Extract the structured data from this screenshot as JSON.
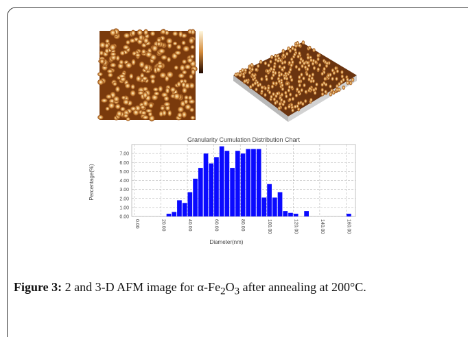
{
  "figure": {
    "chart_data": {
      "type": "histogram",
      "title": "Granularity Cumulation Distribution Chart",
      "x_label": "Diameter(nm)",
      "y_label": "Percentage(%)",
      "bins": [
        24,
        28,
        32,
        36,
        40,
        44,
        48,
        52,
        56,
        60,
        64,
        68,
        72,
        76,
        80,
        84,
        88,
        92,
        96,
        100,
        104,
        108,
        112,
        116,
        120,
        124,
        128,
        132,
        136,
        140,
        144,
        148,
        152,
        156,
        160,
        164
      ],
      "values": [
        0.3,
        0.5,
        1.8,
        1.5,
        2.7,
        4.2,
        5.4,
        7.0,
        5.9,
        6.6,
        7.8,
        7.3,
        5.4,
        7.3,
        7.0,
        7.5,
        7.5,
        7.5,
        2.1,
        3.6,
        2.1,
        2.7,
        0.6,
        0.4,
        0.3,
        0,
        0.6,
        0,
        0,
        0,
        0,
        0,
        0,
        0,
        0.3
      ],
      "color": "#0a0aff",
      "xlim": [
        -2,
        167
      ],
      "ylim": [
        0,
        8
      ],
      "xticks": [
        {
          "value": 0,
          "label": "0.00"
        },
        {
          "value": 20,
          "label": "20.00"
        },
        {
          "value": 40,
          "label": "40.00"
        },
        {
          "value": 60,
          "label": "60.00"
        },
        {
          "value": 80,
          "label": "80.00"
        },
        {
          "value": 100,
          "label": "100.00"
        },
        {
          "value": 120,
          "label": "120.00"
        },
        {
          "value": 140,
          "label": "140.00"
        },
        {
          "value": 160,
          "label": "160.00"
        }
      ],
      "yticks": [
        {
          "value": 0,
          "label": "0.00"
        },
        {
          "value": 1,
          "label": "1.00"
        },
        {
          "value": 2,
          "label": "2.00"
        },
        {
          "value": 3,
          "label": "3.00"
        },
        {
          "value": 4,
          "label": "4.00"
        },
        {
          "value": 5,
          "label": "5.00"
        },
        {
          "value": 6,
          "label": "6.00"
        },
        {
          "value": 7,
          "label": "7.00"
        }
      ],
      "grid": true
    },
    "caption": {
      "label": "Figure 3:",
      "text": [
        "2 and 3-D AFM image for α-Fe",
        "2",
        "O",
        "3",
        " after annealing at 200°C."
      ]
    }
  }
}
